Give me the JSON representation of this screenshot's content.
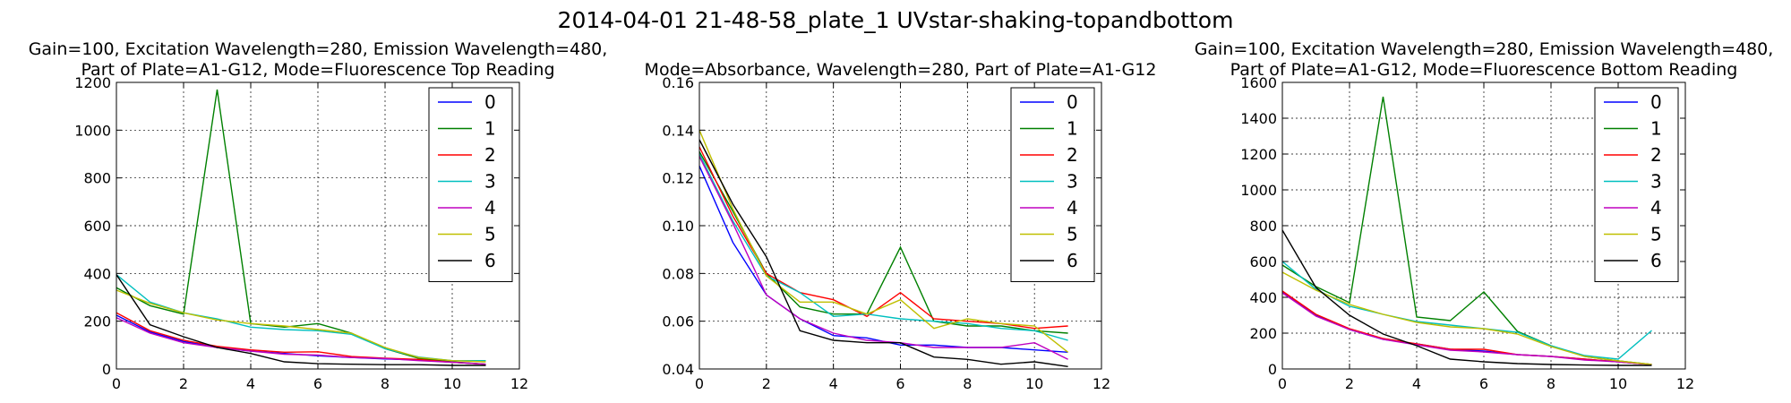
{
  "figure": {
    "suptitle": "2014-04-01 21-48-58_plate_1 UVstar-shaking-topandbottom"
  },
  "chart_data": [
    {
      "type": "line",
      "title": [
        "Gain=100, Excitation Wavelength=280, Emission Wavelength=480,",
        "Part of Plate=A1-G12, Mode=Fluorescence Top Reading"
      ],
      "xlim": [
        0,
        12
      ],
      "ylim": [
        0,
        1200
      ],
      "xticks": [
        0,
        2,
        4,
        6,
        8,
        10,
        12
      ],
      "yticks": [
        0,
        200,
        400,
        600,
        800,
        1000,
        1200
      ],
      "grid": true,
      "legend_position": "top-right",
      "x": [
        0,
        1,
        2,
        3,
        4,
        5,
        6,
        7,
        8,
        9,
        10,
        11
      ],
      "series": [
        {
          "name": "0",
          "color": "#0000ff",
          "values": [
            225,
            155,
            115,
            90,
            75,
            65,
            55,
            48,
            42,
            38,
            28,
            20
          ]
        },
        {
          "name": "1",
          "color": "#008000",
          "values": [
            340,
            265,
            230,
            1170,
            190,
            175,
            190,
            150,
            85,
            45,
            30,
            20
          ]
        },
        {
          "name": "2",
          "color": "#ff0000",
          "values": [
            235,
            160,
            120,
            95,
            80,
            70,
            72,
            52,
            45,
            40,
            28,
            20
          ]
        },
        {
          "name": "3",
          "color": "#00bfbf",
          "values": [
            395,
            280,
            235,
            210,
            175,
            165,
            160,
            145,
            85,
            50,
            35,
            35
          ]
        },
        {
          "name": "4",
          "color": "#bf00bf",
          "values": [
            215,
            150,
            110,
            90,
            75,
            62,
            58,
            48,
            44,
            35,
            28,
            20
          ]
        },
        {
          "name": "5",
          "color": "#bfbf00",
          "values": [
            330,
            275,
            235,
            205,
            190,
            180,
            165,
            150,
            90,
            48,
            35,
            30
          ]
        },
        {
          "name": "6",
          "color": "#000000",
          "values": [
            395,
            185,
            135,
            90,
            65,
            30,
            22,
            20,
            18,
            18,
            15,
            15
          ]
        }
      ]
    },
    {
      "type": "line",
      "title": [
        "Mode=Absorbance, Wavelength=280, Part of Plate=A1-G12"
      ],
      "xlim": [
        0,
        12
      ],
      "ylim": [
        0.04,
        0.16
      ],
      "xticks": [
        0,
        2,
        4,
        6,
        8,
        10,
        12
      ],
      "yticks": [
        0.04,
        0.06,
        0.08,
        0.1,
        0.12,
        0.14,
        0.16
      ],
      "ytick_labels": [
        "0.04",
        "0.06",
        "0.08",
        "0.10",
        "0.12",
        "0.14",
        "0.16"
      ],
      "grid": true,
      "legend_position": "top-right",
      "x": [
        0,
        1,
        2,
        3,
        4,
        5,
        6,
        7,
        8,
        9,
        10,
        11
      ],
      "series": [
        {
          "name": "0",
          "color": "#0000ff",
          "values": [
            0.125,
            0.093,
            0.071,
            0.061,
            0.054,
            0.053,
            0.05,
            0.05,
            0.049,
            0.049,
            0.048,
            0.047
          ]
        },
        {
          "name": "1",
          "color": "#008000",
          "values": [
            0.131,
            0.106,
            0.08,
            0.066,
            0.063,
            0.063,
            0.091,
            0.06,
            0.058,
            0.058,
            0.056,
            0.055
          ]
        },
        {
          "name": "2",
          "color": "#ff0000",
          "values": [
            0.133,
            0.104,
            0.08,
            0.072,
            0.069,
            0.062,
            0.072,
            0.061,
            0.06,
            0.059,
            0.057,
            0.058
          ]
        },
        {
          "name": "3",
          "color": "#00bfbf",
          "values": [
            0.13,
            0.102,
            0.079,
            0.072,
            0.062,
            0.063,
            0.061,
            0.06,
            0.059,
            0.057,
            0.056,
            0.052
          ]
        },
        {
          "name": "4",
          "color": "#bf00bf",
          "values": [
            0.129,
            0.101,
            0.071,
            0.061,
            0.055,
            0.052,
            0.051,
            0.049,
            0.049,
            0.049,
            0.051,
            0.044
          ]
        },
        {
          "name": "5",
          "color": "#bfbf00",
          "values": [
            0.14,
            0.107,
            0.079,
            0.068,
            0.068,
            0.063,
            0.069,
            0.057,
            0.061,
            0.059,
            0.058,
            0.047
          ]
        },
        {
          "name": "6",
          "color": "#000000",
          "values": [
            0.136,
            0.109,
            0.087,
            0.056,
            0.052,
            0.051,
            0.051,
            0.045,
            0.044,
            0.042,
            0.043,
            0.041
          ]
        }
      ]
    },
    {
      "type": "line",
      "title": [
        "Gain=100, Excitation Wavelength=280, Emission Wavelength=480,",
        "Part of Plate=A1-G12, Mode=Fluorescence Bottom Reading"
      ],
      "xlim": [
        0,
        12
      ],
      "ylim": [
        0,
        1600
      ],
      "xticks": [
        0,
        2,
        4,
        6,
        8,
        10,
        12
      ],
      "yticks": [
        0,
        200,
        400,
        600,
        800,
        1000,
        1200,
        1400,
        1600
      ],
      "grid": true,
      "legend_position": "top-right",
      "x": [
        0,
        1,
        2,
        3,
        4,
        5,
        6,
        7,
        8,
        9,
        10,
        11
      ],
      "series": [
        {
          "name": "0",
          "color": "#0000ff",
          "values": [
            430,
            300,
            220,
            165,
            140,
            110,
            100,
            80,
            70,
            55,
            40,
            25
          ]
        },
        {
          "name": "1",
          "color": "#008000",
          "values": [
            580,
            460,
            370,
            1520,
            290,
            270,
            430,
            210,
            130,
            70,
            45,
            25
          ]
        },
        {
          "name": "2",
          "color": "#ff0000",
          "values": [
            435,
            305,
            225,
            170,
            140,
            110,
            110,
            80,
            70,
            55,
            40,
            25
          ]
        },
        {
          "name": "3",
          "color": "#00bfbf",
          "values": [
            600,
            445,
            350,
            305,
            265,
            245,
            225,
            205,
            130,
            75,
            55,
            215
          ]
        },
        {
          "name": "4",
          "color": "#bf00bf",
          "values": [
            425,
            295,
            220,
            165,
            135,
            105,
            95,
            80,
            70,
            50,
            40,
            25
          ]
        },
        {
          "name": "5",
          "color": "#bfbf00",
          "values": [
            540,
            440,
            360,
            305,
            260,
            235,
            225,
            195,
            125,
            70,
            45,
            25
          ]
        },
        {
          "name": "6",
          "color": "#000000",
          "values": [
            775,
            455,
            300,
            195,
            130,
            55,
            40,
            30,
            25,
            22,
            20,
            20
          ]
        }
      ]
    }
  ]
}
